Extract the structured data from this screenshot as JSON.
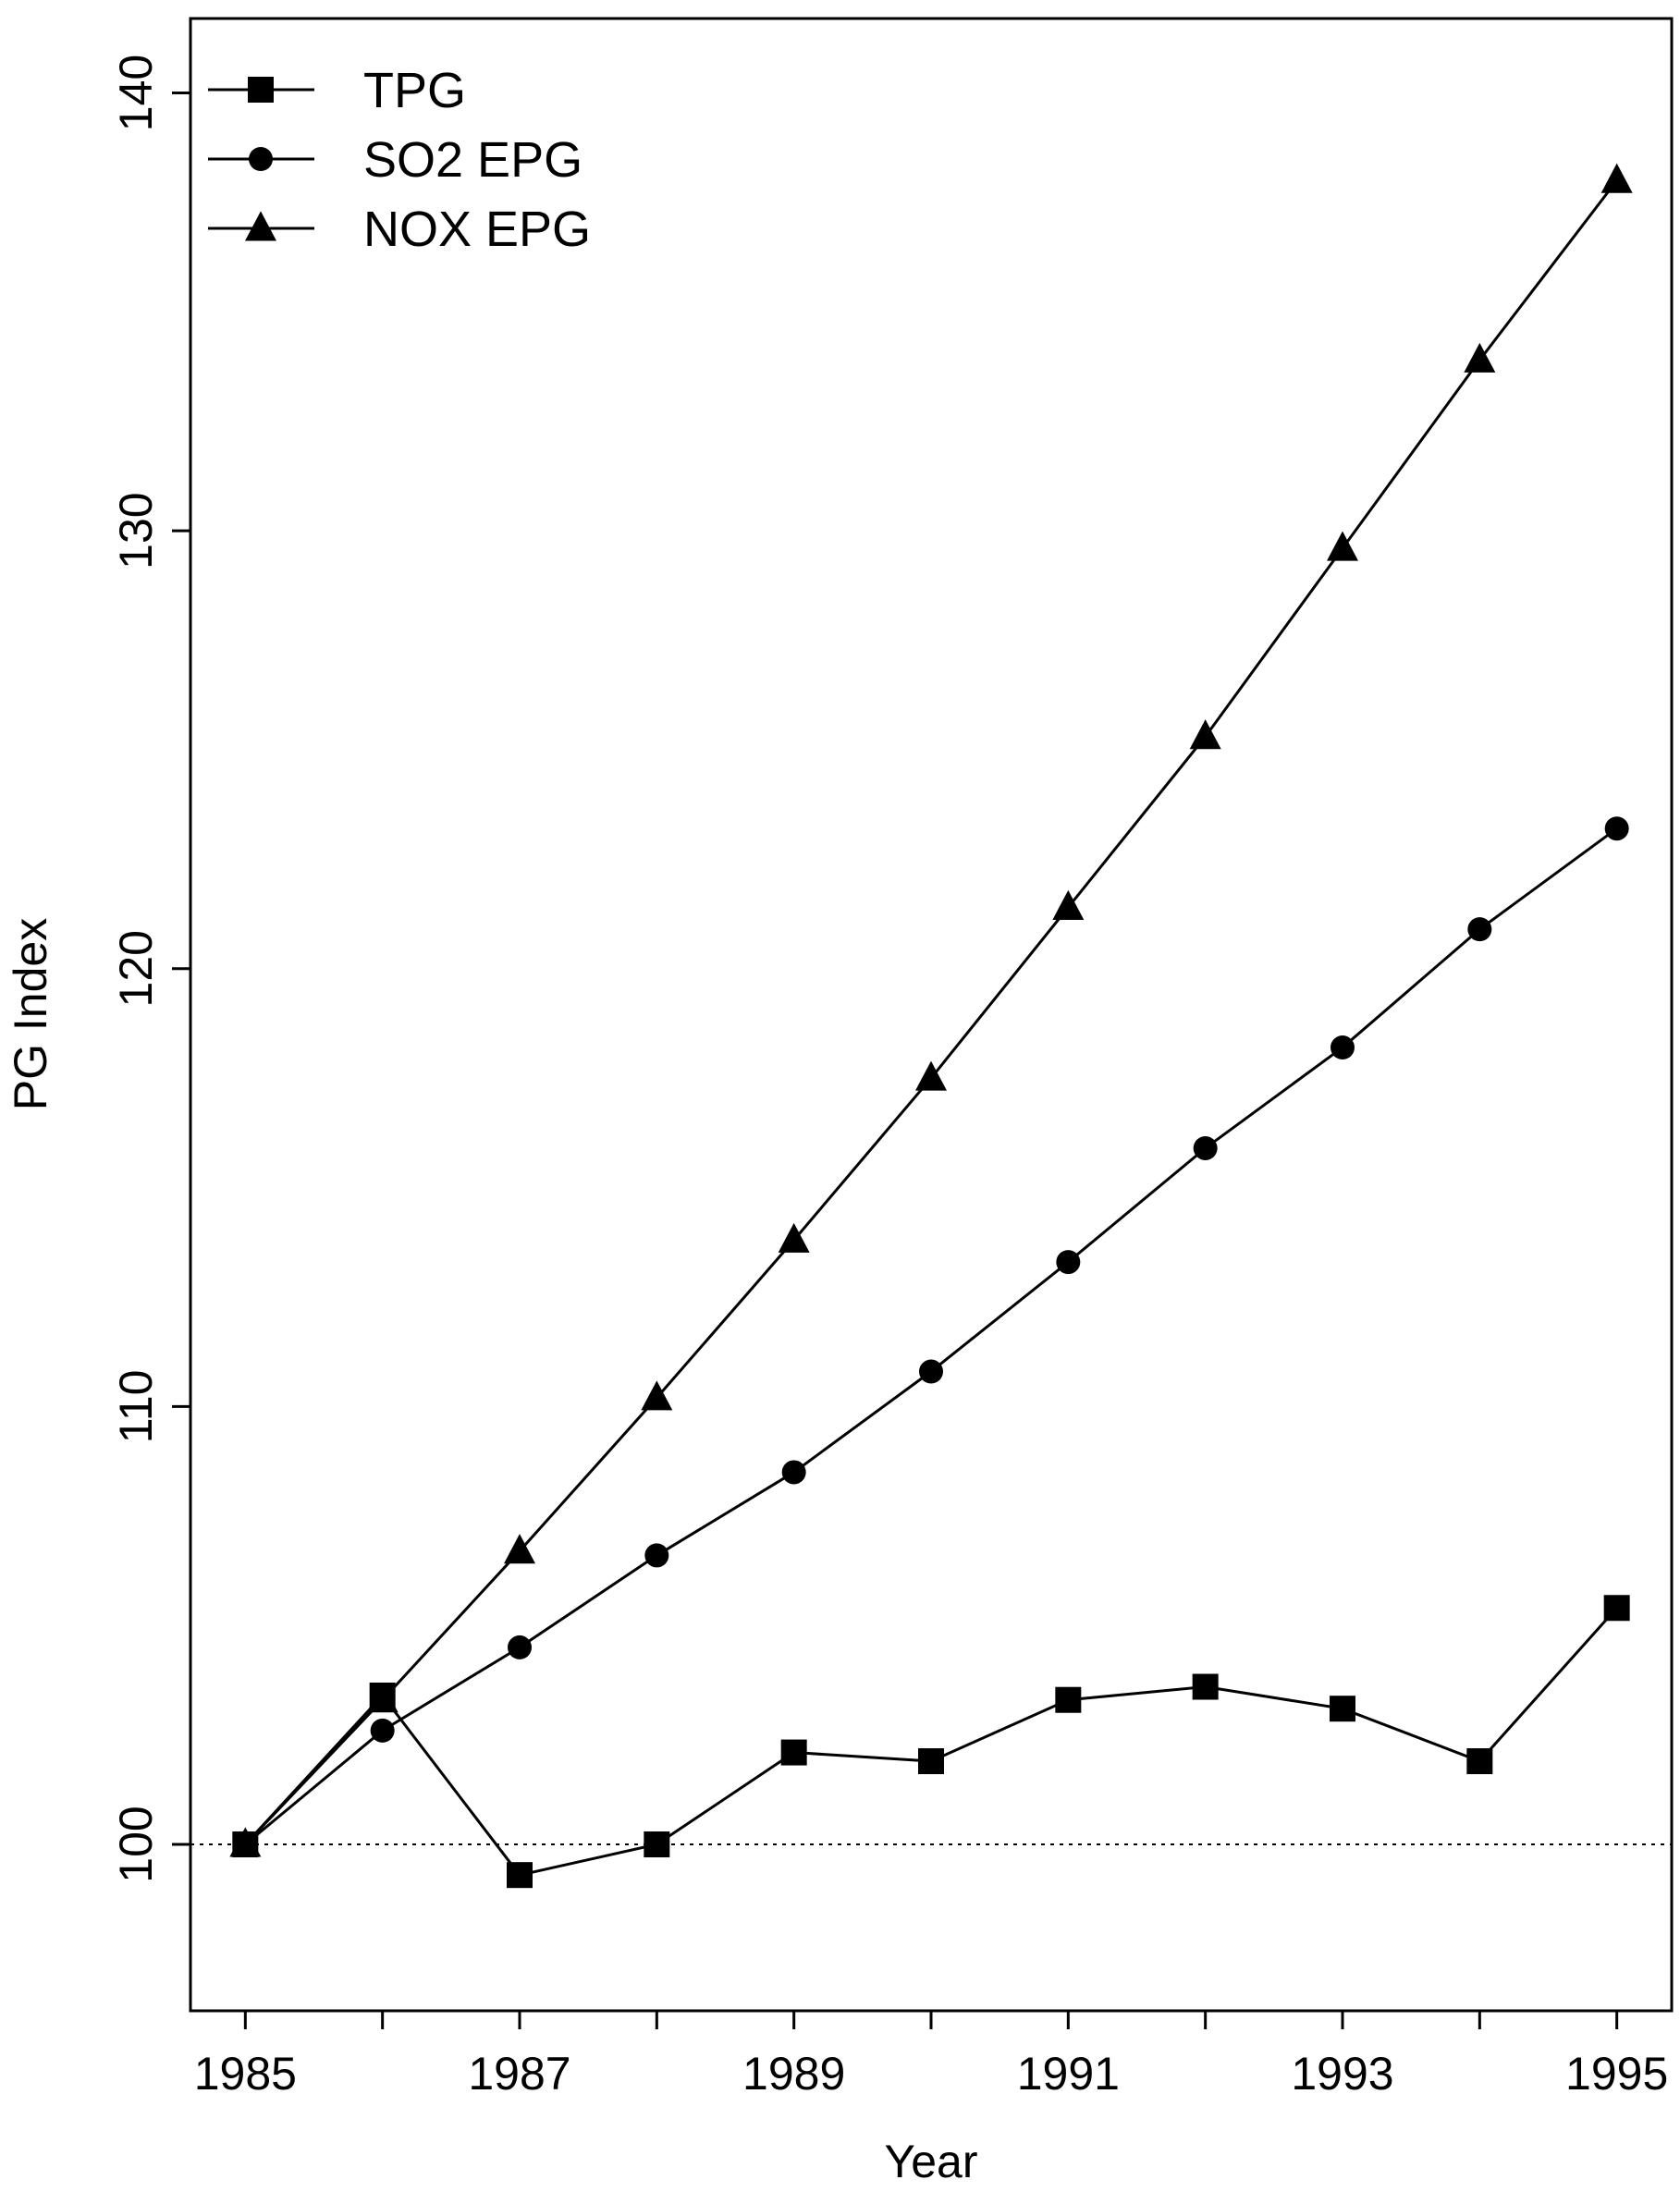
{
  "chart_data": {
    "type": "line",
    "xlabel": "Year",
    "ylabel": "PG Index",
    "x": [
      1985,
      1986,
      1987,
      1988,
      1989,
      1990,
      1991,
      1992,
      1993,
      1994,
      1995
    ],
    "xlim": [
      1984.6,
      1995.4
    ],
    "ylim": [
      96.2,
      141.7
    ],
    "x_ticks": [
      1985,
      1986,
      1987,
      1988,
      1989,
      1990,
      1991,
      1992,
      1993,
      1994,
      1995
    ],
    "x_tick_labels": [
      "1985",
      "1987",
      "1989",
      "1991",
      "1993",
      "1995"
    ],
    "y_ticks": [
      100,
      110,
      120,
      130,
      140
    ],
    "y_tick_labels": [
      "100",
      "110",
      "120",
      "130",
      "140"
    ],
    "reference_line": {
      "y": 100,
      "style": "dotted"
    },
    "grid": false,
    "legend": {
      "position": "top-left"
    },
    "series": [
      {
        "name": "TPG",
        "marker": "square",
        "color": "#000000",
        "values": [
          100.0,
          103.4,
          99.3,
          100.0,
          102.1,
          101.9,
          103.3,
          103.6,
          103.1,
          101.9,
          105.4
        ]
      },
      {
        "name": "SO2 EPG",
        "marker": "circle",
        "color": "#000000",
        "values": [
          100.0,
          102.6,
          104.5,
          106.6,
          108.5,
          110.8,
          113.3,
          115.9,
          118.2,
          120.9,
          123.2
        ]
      },
      {
        "name": "NOX EPG",
        "marker": "triangle",
        "color": "#000000",
        "values": [
          100.0,
          103.3,
          106.7,
          110.2,
          113.8,
          117.5,
          121.4,
          125.3,
          129.6,
          133.9,
          138.0
        ]
      }
    ]
  }
}
